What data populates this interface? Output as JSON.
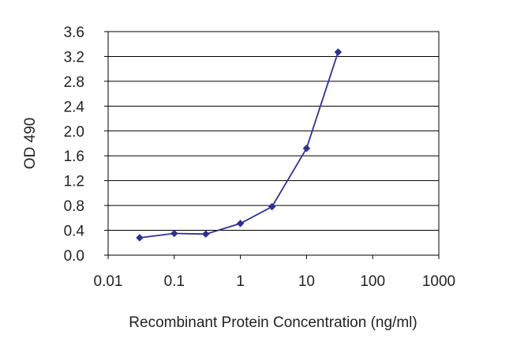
{
  "chart_data": {
    "type": "line",
    "title": "",
    "xlabel": "Recombinant Protein Concentration (ng/ml)",
    "ylabel": "OD 490",
    "x_scale": "log",
    "xlim": [
      0.01,
      1000
    ],
    "ylim": [
      0,
      3.6
    ],
    "x_ticks": [
      "0.01",
      "0.1",
      "1",
      "10",
      "100",
      "1000"
    ],
    "x_tick_values": [
      0.01,
      0.1,
      1,
      10,
      100,
      1000
    ],
    "y_ticks": [
      "0.0",
      "0.4",
      "0.8",
      "1.2",
      "1.6",
      "2.0",
      "2.4",
      "2.8",
      "3.2",
      "3.6"
    ],
    "y_tick_values": [
      0,
      0.4,
      0.8,
      1.2,
      1.6,
      2.0,
      2.4,
      2.8,
      3.2,
      3.6
    ],
    "grid": "horizontal",
    "legend": "none",
    "series": [
      {
        "color": "#2e3192",
        "marker": "diamond",
        "x": [
          0.03,
          0.1,
          0.3,
          1,
          3,
          10,
          30
        ],
        "y": [
          0.28,
          0.35,
          0.34,
          0.51,
          0.78,
          1.72,
          3.27
        ]
      }
    ]
  }
}
